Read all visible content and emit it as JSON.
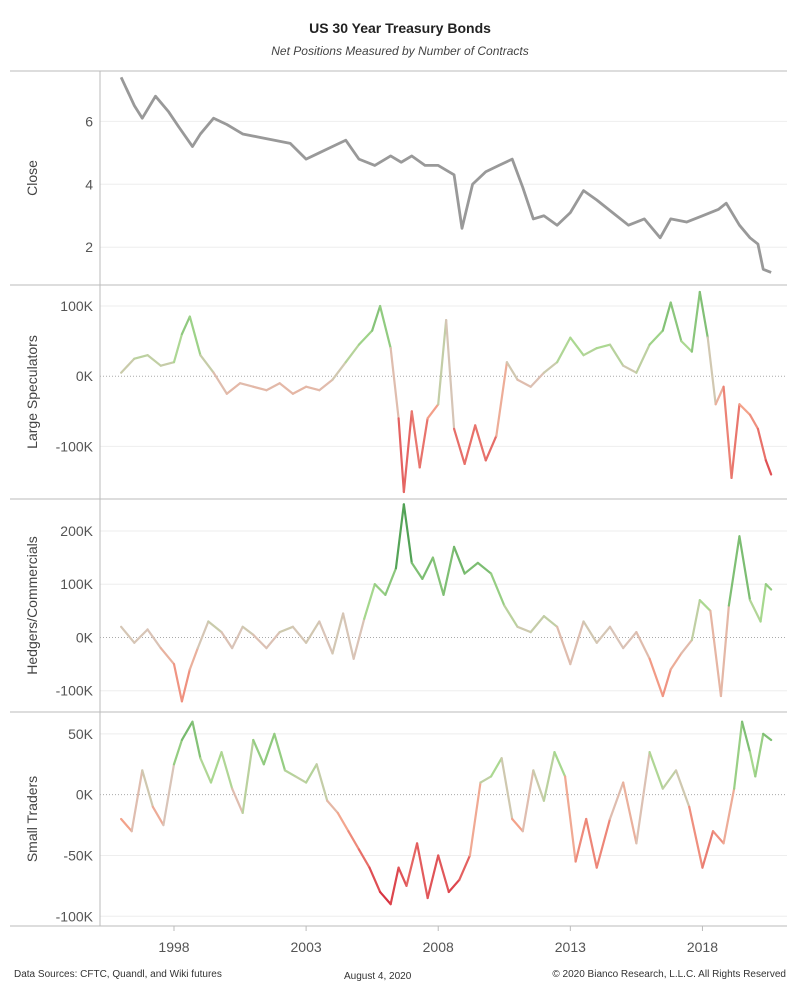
{
  "header": {
    "title": "US 30 Year Treasury Bonds",
    "subtitle": "Net Positions Measured by Number of Contracts"
  },
  "footer": {
    "sources": "Data Sources: CFTC, Quandl, and Wiki futures",
    "date": "August 4, 2020",
    "copyright": "© 2020 Bianco Research, L.L.C. All Rights Reserved"
  },
  "colors": {
    "close_line": "#999999",
    "positive_strong": "#2e8b3e",
    "positive_light": "#a8d98f",
    "neutral": "#d9c4b8",
    "negative_light": "#f4a48c",
    "negative_strong": "#d42035",
    "grid": "#eeeeee",
    "zero_line": "#aaaaaa",
    "panel_border": "#bbbbbb"
  },
  "chart_data": [
    {
      "type": "line",
      "ylabel": "Close",
      "ylim": [
        0.8,
        7.6
      ],
      "yticks": [
        2,
        4,
        6
      ],
      "ytick_labels": [
        "2",
        "4",
        "6"
      ],
      "color_mode": "solid",
      "x": [
        1996.0,
        1996.5,
        1996.8,
        1997.3,
        1997.8,
        1998.2,
        1998.7,
        1999.0,
        1999.5,
        2000.0,
        2000.6,
        2001.2,
        2001.8,
        2002.4,
        2003.0,
        2003.5,
        2004.0,
        2004.5,
        2005.0,
        2005.6,
        2006.2,
        2006.6,
        2007.0,
        2007.5,
        2008.0,
        2008.6,
        2008.9,
        2009.3,
        2009.8,
        2010.3,
        2010.8,
        2011.2,
        2011.6,
        2012.0,
        2012.5,
        2013.0,
        2013.5,
        2014.0,
        2014.6,
        2015.2,
        2015.8,
        2016.4,
        2016.8,
        2017.4,
        2018.0,
        2018.6,
        2018.9,
        2019.4,
        2019.8,
        2020.1,
        2020.3,
        2020.6
      ],
      "values": [
        7.4,
        6.5,
        6.1,
        6.8,
        6.3,
        5.8,
        5.2,
        5.6,
        6.1,
        5.9,
        5.6,
        5.5,
        5.4,
        5.3,
        4.8,
        5.0,
        5.2,
        5.4,
        4.8,
        4.6,
        4.9,
        4.7,
        4.9,
        4.6,
        4.6,
        4.3,
        2.6,
        4.0,
        4.4,
        4.6,
        4.8,
        3.9,
        2.9,
        3.0,
        2.7,
        3.1,
        3.8,
        3.5,
        3.1,
        2.7,
        2.9,
        2.3,
        2.9,
        2.8,
        3.0,
        3.2,
        3.4,
        2.7,
        2.3,
        2.1,
        1.3,
        1.2
      ]
    },
    {
      "type": "line",
      "ylabel": "Large Speculators",
      "ylim": [
        -175000,
        130000
      ],
      "yticks": [
        100000,
        0,
        -100000
      ],
      "ytick_labels": [
        "100K",
        "0K",
        "-100K"
      ],
      "color_mode": "diverging",
      "color_scale": 180000,
      "x": [
        1996.0,
        1996.5,
        1997.0,
        1997.5,
        1998.0,
        1998.3,
        1998.6,
        1999.0,
        1999.5,
        2000.0,
        2000.5,
        2001.0,
        2001.5,
        2002.0,
        2002.5,
        2003.0,
        2003.5,
        2004.0,
        2004.5,
        2005.0,
        2005.5,
        2005.8,
        2006.2,
        2006.5,
        2006.7,
        2007.0,
        2007.3,
        2007.6,
        2008.0,
        2008.3,
        2008.6,
        2009.0,
        2009.4,
        2009.8,
        2010.2,
        2010.6,
        2011.0,
        2011.5,
        2012.0,
        2012.5,
        2013.0,
        2013.5,
        2014.0,
        2014.5,
        2015.0,
        2015.5,
        2016.0,
        2016.5,
        2016.8,
        2017.2,
        2017.6,
        2017.9,
        2018.2,
        2018.5,
        2018.8,
        2019.1,
        2019.4,
        2019.8,
        2020.1,
        2020.4,
        2020.6
      ],
      "values": [
        5000,
        25000,
        30000,
        15000,
        20000,
        60000,
        85000,
        30000,
        5000,
        -25000,
        -10000,
        -15000,
        -20000,
        -10000,
        -25000,
        -15000,
        -20000,
        -5000,
        20000,
        45000,
        65000,
        100000,
        40000,
        -60000,
        -165000,
        -50000,
        -130000,
        -60000,
        -40000,
        80000,
        -75000,
        -125000,
        -70000,
        -120000,
        -85000,
        20000,
        -5000,
        -15000,
        5000,
        20000,
        55000,
        30000,
        40000,
        45000,
        15000,
        5000,
        45000,
        65000,
        105000,
        50000,
        35000,
        120000,
        55000,
        -40000,
        -15000,
        -145000,
        -40000,
        -55000,
        -75000,
        -120000,
        -140000
      ]
    },
    {
      "type": "line",
      "ylabel": "Hedgers/Commercials",
      "ylim": [
        -140000,
        260000
      ],
      "yticks": [
        200000,
        100000,
        0,
        -100000
      ],
      "ytick_labels": [
        "200K",
        "100K",
        "0K",
        "-100K"
      ],
      "color_mode": "diverging",
      "color_scale": 250000,
      "x": [
        1996.0,
        1996.5,
        1997.0,
        1997.5,
        1998.0,
        1998.3,
        1998.6,
        1998.9,
        1999.3,
        1999.8,
        2000.2,
        2000.6,
        2001.0,
        2001.5,
        2002.0,
        2002.5,
        2003.0,
        2003.5,
        2004.0,
        2004.4,
        2004.8,
        2005.2,
        2005.6,
        2006.0,
        2006.4,
        2006.7,
        2007.0,
        2007.4,
        2007.8,
        2008.2,
        2008.6,
        2009.0,
        2009.5,
        2010.0,
        2010.5,
        2011.0,
        2011.5,
        2012.0,
        2012.5,
        2013.0,
        2013.5,
        2014.0,
        2014.5,
        2015.0,
        2015.5,
        2016.0,
        2016.5,
        2016.8,
        2017.2,
        2017.6,
        2017.9,
        2018.3,
        2018.7,
        2019.0,
        2019.4,
        2019.8,
        2020.2,
        2020.4,
        2020.6
      ],
      "values": [
        20000,
        -10000,
        15000,
        -20000,
        -50000,
        -120000,
        -60000,
        -20000,
        30000,
        10000,
        -20000,
        20000,
        5000,
        -20000,
        10000,
        20000,
        -10000,
        30000,
        -30000,
        45000,
        -40000,
        35000,
        100000,
        80000,
        130000,
        250000,
        140000,
        110000,
        150000,
        80000,
        170000,
        120000,
        140000,
        120000,
        60000,
        20000,
        10000,
        40000,
        20000,
        -50000,
        30000,
        -10000,
        20000,
        -20000,
        10000,
        -40000,
        -110000,
        -60000,
        -30000,
        -5000,
        70000,
        50000,
        -110000,
        60000,
        190000,
        70000,
        30000,
        100000,
        90000
      ]
    },
    {
      "type": "line",
      "ylabel": "Small Traders",
      "ylim": [
        -108000,
        68000
      ],
      "yticks": [
        50000,
        0,
        -50000,
        -100000
      ],
      "ytick_labels": [
        "50K",
        "0K",
        "-50K",
        "-100K"
      ],
      "color_mode": "diverging",
      "color_scale": 95000,
      "x": [
        1996.0,
        1996.4,
        1996.8,
        1997.2,
        1997.6,
        1998.0,
        1998.3,
        1998.7,
        1999.0,
        1999.4,
        1999.8,
        2000.2,
        2000.6,
        2001.0,
        2001.4,
        2001.8,
        2002.2,
        2002.6,
        2003.0,
        2003.4,
        2003.8,
        2004.2,
        2004.6,
        2005.0,
        2005.4,
        2005.8,
        2006.2,
        2006.5,
        2006.8,
        2007.2,
        2007.6,
        2008.0,
        2008.4,
        2008.8,
        2009.2,
        2009.6,
        2010.0,
        2010.4,
        2010.8,
        2011.2,
        2011.6,
        2012.0,
        2012.4,
        2012.8,
        2013.2,
        2013.6,
        2014.0,
        2014.5,
        2015.0,
        2015.5,
        2016.0,
        2016.5,
        2017.0,
        2017.5,
        2018.0,
        2018.4,
        2018.8,
        2019.2,
        2019.5,
        2019.8,
        2020.0,
        2020.3,
        2020.6
      ],
      "values": [
        -20000,
        -30000,
        20000,
        -10000,
        -25000,
        25000,
        45000,
        60000,
        30000,
        10000,
        35000,
        5000,
        -15000,
        45000,
        25000,
        50000,
        20000,
        15000,
        10000,
        25000,
        -5000,
        -15000,
        -30000,
        -45000,
        -60000,
        -80000,
        -90000,
        -60000,
        -75000,
        -40000,
        -85000,
        -50000,
        -80000,
        -70000,
        -50000,
        10000,
        15000,
        30000,
        -20000,
        -30000,
        20000,
        -5000,
        35000,
        15000,
        -55000,
        -20000,
        -60000,
        -20000,
        10000,
        -40000,
        35000,
        5000,
        20000,
        -10000,
        -60000,
        -30000,
        -40000,
        5000,
        60000,
        35000,
        15000,
        50000,
        45000
      ]
    }
  ],
  "x_axis": {
    "ticks": [
      1998,
      2003,
      2008,
      2013,
      2018
    ],
    "tick_labels": [
      "1998",
      "2003",
      "2008",
      "2013",
      "2018"
    ],
    "range": [
      1995.2,
      2021.2
    ]
  }
}
